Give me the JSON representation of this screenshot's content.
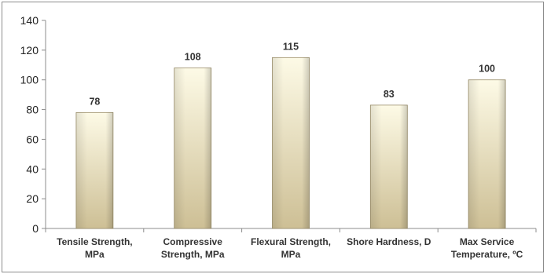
{
  "chart_data": {
    "type": "bar",
    "categories": [
      [
        "Tensile Strength,",
        "MPa"
      ],
      [
        "Compressive",
        "Strength, MPa"
      ],
      [
        "Flexural Strength,",
        "MPa"
      ],
      [
        "Shore Hardness, D"
      ],
      [
        "Max Service",
        "Temperature, ºC"
      ]
    ],
    "values": [
      78,
      108,
      115,
      83,
      100
    ],
    "data_labels": [
      "78",
      "108",
      "115",
      "83",
      "100"
    ],
    "ylim": [
      0,
      140
    ],
    "yticks": [
      0,
      20,
      40,
      60,
      80,
      100,
      120,
      140
    ],
    "grid": false,
    "legend": "none",
    "title": "",
    "xlabel": "",
    "ylabel": "",
    "colors": {
      "bar_top": "#fdfae6",
      "bar_bottom": "#cdbf95",
      "bar_edge": "#9c8f6a",
      "axis": "#8c8c8c"
    }
  }
}
